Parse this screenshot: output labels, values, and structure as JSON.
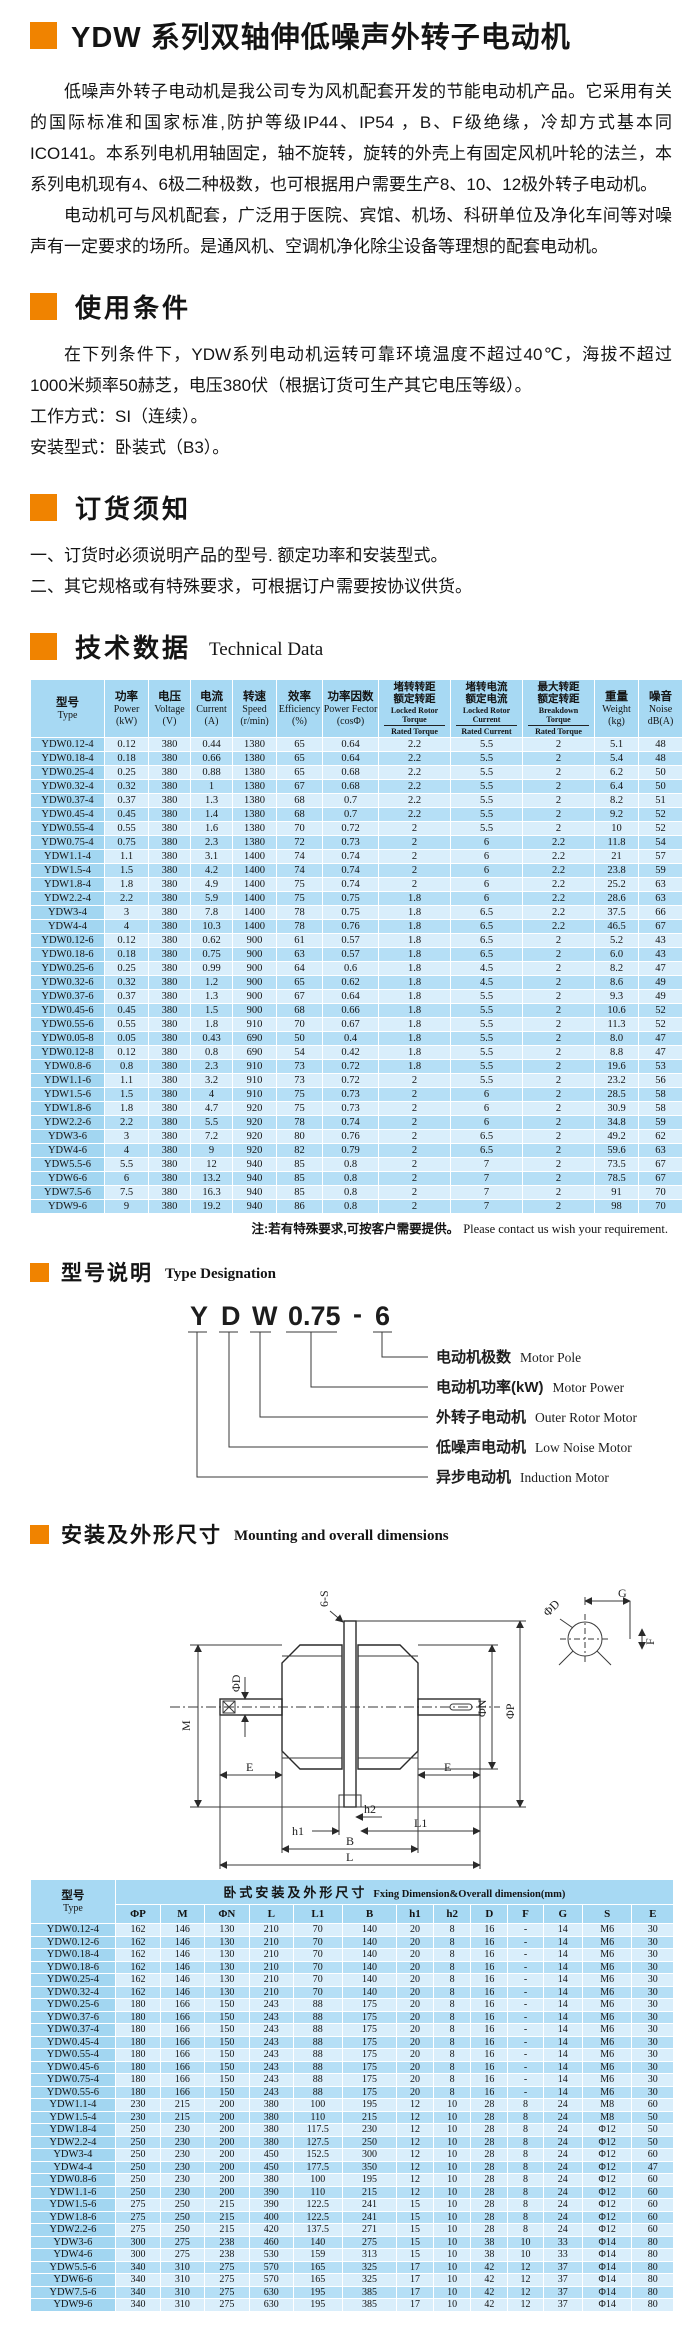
{
  "colors": {
    "accent_orange": "#F08300",
    "table_header_blue": "#A7D9F3",
    "row_light": "#D9EEFB",
    "row_medium": "#B5DFF6",
    "type_col_blue": "#A2D6F1"
  },
  "page": {
    "title": "YDW 系列双轴伸低噪声外转子电动机",
    "intro_p1": "低噪声外转子电动机是我公司专为风机配套开发的节能电动机产品。它采用有关的国际标准和国家标准,防护等级IP44、IP54 ，B、F级绝缘，冷却方式基本同ICO141。本系列电机用轴固定，轴不旋转，旋转的外壳上有固定风机叶轮的法兰，本系列电机现有4、6极二种极数，也可根据用户需要生产8、10、12极外转子电动机。",
    "intro_p2": "电动机可与风机配套，广泛用于医院、宾馆、机场、科研单位及净化车间等对噪声有一定要求的场所。是通风机、空调机净化除尘设备等理想的配套电动机。"
  },
  "sections": {
    "usage": {
      "title": "使用条件",
      "body": "在下列条件下，YDW系列电动机运转可靠环境温度不超过40℃，海拔不超过1000米频率50赫芝，电压380伏（根据订货可生产其它电压等级）。",
      "line1": "工作方式：SI（连续）。",
      "line2": "安装型式：卧装式（B3）。"
    },
    "ordering": {
      "title": "订货须知",
      "item1": "一、订货时必须说明产品的型号. 额定功率和安装型式。",
      "item2": "二、其它规格或有特殊要求，可根据订户需要按协议供货。"
    },
    "technical": {
      "title_zh": "技术数据",
      "title_en": "Technical Data",
      "note_zh": "注:若有特殊要求,可按客户需要提供。",
      "note_en": "Please contact us wish your requirement."
    },
    "designation": {
      "title_zh": "型号说明",
      "title_en": "Type Designation",
      "code_parts": [
        "Y",
        "D",
        "W",
        "0.75",
        "-",
        "6"
      ],
      "labels": [
        {
          "zh": "电动机极数",
          "en": "Motor Pole"
        },
        {
          "zh": "电动机功率(kW)",
          "en": "Motor  Power"
        },
        {
          "zh": "外转子电动机",
          "en": "Outer Rotor Motor"
        },
        {
          "zh": "低噪声电动机",
          "en": "Low Noise Motor"
        },
        {
          "zh": "异步电动机",
          "en": "Induction Motor"
        }
      ]
    },
    "mounting": {
      "title_zh": "安装及外形尺寸",
      "title_en": "Mounting and overall dimensions"
    }
  },
  "drawing": {
    "six_s": "6-S",
    "m": "M",
    "phi_d": "ΦD",
    "e_left": "E",
    "e_right": "E",
    "phi_n": "ΦN",
    "phi_p": "ΦP",
    "h1": "h1",
    "h2": "h2",
    "l1": "L1",
    "b": "B",
    "l": "L",
    "g": "G",
    "f": "F",
    "phi_d_detail": "ΦD"
  },
  "tech_table": {
    "col_type": {
      "zh": "型号",
      "en": "Type"
    },
    "cols": [
      {
        "zh": "功率",
        "en": "Power",
        "unit": "(kW)"
      },
      {
        "zh": "电压",
        "en": "Voltage",
        "unit": "(V)"
      },
      {
        "zh": "电流",
        "en": "Current",
        "unit": "(A)"
      },
      {
        "zh": "转速",
        "en": "Speed",
        "unit": "(r/min)"
      },
      {
        "zh": "效率",
        "en": "Efficiency",
        "unit": "(%)"
      },
      {
        "zh": "功率因数",
        "en": "Power Fector",
        "unit": "(cosΦ)"
      },
      {
        "zh_top": "堵转转距",
        "zh_bottom": "额定转距",
        "en_top": "Locked Rotor Torque",
        "en_bottom": "Rated Torque"
      },
      {
        "zh_top": "堵转电流",
        "zh_bottom": "额定电流",
        "en_top": "Locked Rotor Current",
        "en_bottom": "Rated Current"
      },
      {
        "zh_top": "最大转距",
        "zh_bottom": "额定转距",
        "en_top": "Breakdown Torque",
        "en_bottom": "Rated Torque"
      },
      {
        "zh": "重量",
        "en": "Weight",
        "unit": "(kg)"
      },
      {
        "zh": "噪音",
        "en": "Noise",
        "unit": "dB(A)"
      }
    ],
    "rows": [
      [
        "YDW0.12-4",
        "0.12",
        "380",
        "0.44",
        "1380",
        "65",
        "0.64",
        "2.2",
        "5.5",
        "2",
        "5.1",
        "48"
      ],
      [
        "YDW0.18-4",
        "0.18",
        "380",
        "0.66",
        "1380",
        "65",
        "0.64",
        "2.2",
        "5.5",
        "2",
        "5.4",
        "48"
      ],
      [
        "YDW0.25-4",
        "0.25",
        "380",
        "0.88",
        "1380",
        "65",
        "0.68",
        "2.2",
        "5.5",
        "2",
        "6.2",
        "50"
      ],
      [
        "YDW0.32-4",
        "0.32",
        "380",
        "1",
        "1380",
        "67",
        "0.68",
        "2.2",
        "5.5",
        "2",
        "6.4",
        "50"
      ],
      [
        "YDW0.37-4",
        "0.37",
        "380",
        "1.3",
        "1380",
        "68",
        "0.7",
        "2.2",
        "5.5",
        "2",
        "8.2",
        "51"
      ],
      [
        "YDW0.45-4",
        "0.45",
        "380",
        "1.4",
        "1380",
        "68",
        "0.7",
        "2.2",
        "5.5",
        "2",
        "9.2",
        "52"
      ],
      [
        "YDW0.55-4",
        "0.55",
        "380",
        "1.6",
        "1380",
        "70",
        "0.72",
        "2",
        "5.5",
        "2",
        "10",
        "52"
      ],
      [
        "YDW0.75-4",
        "0.75",
        "380",
        "2.3",
        "1380",
        "72",
        "0.73",
        "2",
        "6",
        "2.2",
        "11.8",
        "54"
      ],
      [
        "YDW1.1-4",
        "1.1",
        "380",
        "3.1",
        "1400",
        "74",
        "0.74",
        "2",
        "6",
        "2.2",
        "21",
        "57"
      ],
      [
        "YDW1.5-4",
        "1.5",
        "380",
        "4.2",
        "1400",
        "74",
        "0.74",
        "2",
        "6",
        "2.2",
        "23.8",
        "59"
      ],
      [
        "YDW1.8-4",
        "1.8",
        "380",
        "4.9",
        "1400",
        "75",
        "0.74",
        "2",
        "6",
        "2.2",
        "25.2",
        "63"
      ],
      [
        "YDW2.2-4",
        "2.2",
        "380",
        "5.9",
        "1400",
        "75",
        "0.75",
        "1.8",
        "6",
        "2.2",
        "28.6",
        "63"
      ],
      [
        "YDW3-4",
        "3",
        "380",
        "7.8",
        "1400",
        "78",
        "0.75",
        "1.8",
        "6.5",
        "2.2",
        "37.5",
        "66"
      ],
      [
        "YDW4-4",
        "4",
        "380",
        "10.3",
        "1400",
        "78",
        "0.76",
        "1.8",
        "6.5",
        "2.2",
        "46.5",
        "67"
      ],
      [
        "YDW0.12-6",
        "0.12",
        "380",
        "0.62",
        "900",
        "61",
        "0.57",
        "1.8",
        "6.5",
        "2",
        "5.2",
        "43"
      ],
      [
        "YDW0.18-6",
        "0.18",
        "380",
        "0.75",
        "900",
        "63",
        "0.57",
        "1.8",
        "6.5",
        "2",
        "6.0",
        "43"
      ],
      [
        "YDW0.25-6",
        "0.25",
        "380",
        "0.99",
        "900",
        "64",
        "0.6",
        "1.8",
        "4.5",
        "2",
        "8.2",
        "47"
      ],
      [
        "YDW0.32-6",
        "0.32",
        "380",
        "1.2",
        "900",
        "65",
        "0.62",
        "1.8",
        "4.5",
        "2",
        "8.6",
        "49"
      ],
      [
        "YDW0.37-6",
        "0.37",
        "380",
        "1.3",
        "900",
        "67",
        "0.64",
        "1.8",
        "5.5",
        "2",
        "9.3",
        "49"
      ],
      [
        "YDW0.45-6",
        "0.45",
        "380",
        "1.5",
        "900",
        "68",
        "0.66",
        "1.8",
        "5.5",
        "2",
        "10.6",
        "52"
      ],
      [
        "YDW0.55-6",
        "0.55",
        "380",
        "1.8",
        "910",
        "70",
        "0.67",
        "1.8",
        "5.5",
        "2",
        "11.3",
        "52"
      ],
      [
        "YDW0.05-8",
        "0.05",
        "380",
        "0.43",
        "690",
        "50",
        "0.4",
        "1.8",
        "5.5",
        "2",
        "8.0",
        "47"
      ],
      [
        "YDW0.12-8",
        "0.12",
        "380",
        "0.8",
        "690",
        "54",
        "0.42",
        "1.8",
        "5.5",
        "2",
        "8.8",
        "47"
      ],
      [
        "YDW0.8-6",
        "0.8",
        "380",
        "2.3",
        "910",
        "73",
        "0.72",
        "1.8",
        "5.5",
        "2",
        "19.6",
        "53"
      ],
      [
        "YDW1.1-6",
        "1.1",
        "380",
        "3.2",
        "910",
        "73",
        "0.72",
        "2",
        "5.5",
        "2",
        "23.2",
        "56"
      ],
      [
        "YDW1.5-6",
        "1.5",
        "380",
        "4",
        "910",
        "75",
        "0.73",
        "2",
        "6",
        "2",
        "28.5",
        "58"
      ],
      [
        "YDW1.8-6",
        "1.8",
        "380",
        "4.7",
        "920",
        "75",
        "0.73",
        "2",
        "6",
        "2",
        "30.9",
        "58"
      ],
      [
        "YDW2.2-6",
        "2.2",
        "380",
        "5.5",
        "920",
        "78",
        "0.74",
        "2",
        "6",
        "2",
        "34.8",
        "59"
      ],
      [
        "YDW3-6",
        "3",
        "380",
        "7.2",
        "920",
        "80",
        "0.76",
        "2",
        "6.5",
        "2",
        "49.2",
        "62"
      ],
      [
        "YDW4-6",
        "4",
        "380",
        "9",
        "920",
        "82",
        "0.79",
        "2",
        "6.5",
        "2",
        "59.6",
        "63"
      ],
      [
        "YDW5.5-6",
        "5.5",
        "380",
        "12",
        "940",
        "85",
        "0.8",
        "2",
        "7",
        "2",
        "73.5",
        "67"
      ],
      [
        "YDW6-6",
        "6",
        "380",
        "13.2",
        "940",
        "85",
        "0.8",
        "2",
        "7",
        "2",
        "78.5",
        "67"
      ],
      [
        "YDW7.5-6",
        "7.5",
        "380",
        "16.3",
        "940",
        "85",
        "0.8",
        "2",
        "7",
        "2",
        "91",
        "70"
      ],
      [
        "YDW9-6",
        "9",
        "380",
        "19.2",
        "940",
        "86",
        "0.8",
        "2",
        "7",
        "2",
        "98",
        "70"
      ]
    ]
  },
  "dim_table": {
    "col_type": {
      "zh": "型号",
      "en": "Type"
    },
    "group_header": {
      "zh": "卧式安装及外形尺寸",
      "en": "Fxing Dimension&Overall dimension(mm)"
    },
    "cols": [
      "ΦP",
      "M",
      "ΦN",
      "L",
      "L1",
      "B",
      "h1",
      "h2",
      "D",
      "F",
      "G",
      "S",
      "E"
    ],
    "rows": [
      [
        "YDW0.12-4",
        "162",
        "146",
        "130",
        "210",
        "70",
        "140",
        "20",
        "8",
        "16",
        "-",
        "14",
        "M6",
        "30"
      ],
      [
        "YDW0.12-6",
        "162",
        "146",
        "130",
        "210",
        "70",
        "140",
        "20",
        "8",
        "16",
        "-",
        "14",
        "M6",
        "30"
      ],
      [
        "YDW0.18-4",
        "162",
        "146",
        "130",
        "210",
        "70",
        "140",
        "20",
        "8",
        "16",
        "-",
        "14",
        "M6",
        "30"
      ],
      [
        "YDW0.18-6",
        "162",
        "146",
        "130",
        "210",
        "70",
        "140",
        "20",
        "8",
        "16",
        "-",
        "14",
        "M6",
        "30"
      ],
      [
        "YDW0.25-4",
        "162",
        "146",
        "130",
        "210",
        "70",
        "140",
        "20",
        "8",
        "16",
        "-",
        "14",
        "M6",
        "30"
      ],
      [
        "YDW0.32-4",
        "162",
        "146",
        "130",
        "210",
        "70",
        "140",
        "20",
        "8",
        "16",
        "-",
        "14",
        "M6",
        "30"
      ],
      [
        "YDW0.25-6",
        "180",
        "166",
        "150",
        "243",
        "88",
        "175",
        "20",
        "8",
        "16",
        "-",
        "14",
        "M6",
        "30"
      ],
      [
        "YDW0.37-6",
        "180",
        "166",
        "150",
        "243",
        "88",
        "175",
        "20",
        "8",
        "16",
        "-",
        "14",
        "M6",
        "30"
      ],
      [
        "YDW0.37-4",
        "180",
        "166",
        "150",
        "243",
        "88",
        "175",
        "20",
        "8",
        "16",
        "-",
        "14",
        "M6",
        "30"
      ],
      [
        "YDW0.45-4",
        "180",
        "166",
        "150",
        "243",
        "88",
        "175",
        "20",
        "8",
        "16",
        "-",
        "14",
        "M6",
        "30"
      ],
      [
        "YDW0.55-4",
        "180",
        "166",
        "150",
        "243",
        "88",
        "175",
        "20",
        "8",
        "16",
        "-",
        "14",
        "M6",
        "30"
      ],
      [
        "YDW0.45-6",
        "180",
        "166",
        "150",
        "243",
        "88",
        "175",
        "20",
        "8",
        "16",
        "-",
        "14",
        "M6",
        "30"
      ],
      [
        "YDW0.75-4",
        "180",
        "166",
        "150",
        "243",
        "88",
        "175",
        "20",
        "8",
        "16",
        "-",
        "14",
        "M6",
        "30"
      ],
      [
        "YDW0.55-6",
        "180",
        "166",
        "150",
        "243",
        "88",
        "175",
        "20",
        "8",
        "16",
        "-",
        "14",
        "M6",
        "30"
      ],
      [
        "YDW1.1-4",
        "230",
        "215",
        "200",
        "380",
        "100",
        "195",
        "12",
        "10",
        "28",
        "8",
        "24",
        "M8",
        "60"
      ],
      [
        "YDW1.5-4",
        "230",
        "215",
        "200",
        "380",
        "110",
        "215",
        "12",
        "10",
        "28",
        "8",
        "24",
        "M8",
        "50"
      ],
      [
        "YDW1.8-4",
        "250",
        "230",
        "200",
        "380",
        "117.5",
        "230",
        "12",
        "10",
        "28",
        "8",
        "24",
        "Φ12",
        "50"
      ],
      [
        "YDW2.2-4",
        "250",
        "230",
        "200",
        "380",
        "127.5",
        "250",
        "12",
        "10",
        "28",
        "8",
        "24",
        "Φ12",
        "50"
      ],
      [
        "YDW3-4",
        "250",
        "230",
        "200",
        "450",
        "152.5",
        "300",
        "12",
        "10",
        "28",
        "8",
        "24",
        "Φ12",
        "60"
      ],
      [
        "YDW4-4",
        "250",
        "230",
        "200",
        "450",
        "177.5",
        "350",
        "12",
        "10",
        "28",
        "8",
        "24",
        "Φ12",
        "47"
      ],
      [
        "YDW0.8-6",
        "250",
        "230",
        "200",
        "380",
        "100",
        "195",
        "12",
        "10",
        "28",
        "8",
        "24",
        "Φ12",
        "60"
      ],
      [
        "YDW1.1-6",
        "250",
        "230",
        "200",
        "390",
        "110",
        "215",
        "12",
        "10",
        "28",
        "8",
        "24",
        "Φ12",
        "60"
      ],
      [
        "YDW1.5-6",
        "275",
        "250",
        "215",
        "390",
        "122.5",
        "241",
        "15",
        "10",
        "28",
        "8",
        "24",
        "Φ12",
        "60"
      ],
      [
        "YDW1.8-6",
        "275",
        "250",
        "215",
        "400",
        "122.5",
        "241",
        "15",
        "10",
        "28",
        "8",
        "24",
        "Φ12",
        "60"
      ],
      [
        "YDW2.2-6",
        "275",
        "250",
        "215",
        "420",
        "137.5",
        "271",
        "15",
        "10",
        "28",
        "8",
        "24",
        "Φ12",
        "60"
      ],
      [
        "YDW3-6",
        "300",
        "275",
        "238",
        "460",
        "140",
        "275",
        "15",
        "10",
        "38",
        "10",
        "33",
        "Φ14",
        "80"
      ],
      [
        "YDW4-6",
        "300",
        "275",
        "238",
        "530",
        "159",
        "313",
        "15",
        "10",
        "38",
        "10",
        "33",
        "Φ14",
        "80"
      ],
      [
        "YDW5.5-6",
        "340",
        "310",
        "275",
        "570",
        "165",
        "325",
        "17",
        "10",
        "42",
        "12",
        "37",
        "Φ14",
        "80"
      ],
      [
        "YDW6-6",
        "340",
        "310",
        "275",
        "570",
        "165",
        "325",
        "17",
        "10",
        "42",
        "12",
        "37",
        "Φ14",
        "80"
      ],
      [
        "YDW7.5-6",
        "340",
        "310",
        "275",
        "630",
        "195",
        "385",
        "17",
        "10",
        "42",
        "12",
        "37",
        "Φ14",
        "80"
      ],
      [
        "YDW9-6",
        "340",
        "310",
        "275",
        "630",
        "195",
        "385",
        "17",
        "10",
        "42",
        "12",
        "37",
        "Φ14",
        "80"
      ]
    ]
  }
}
